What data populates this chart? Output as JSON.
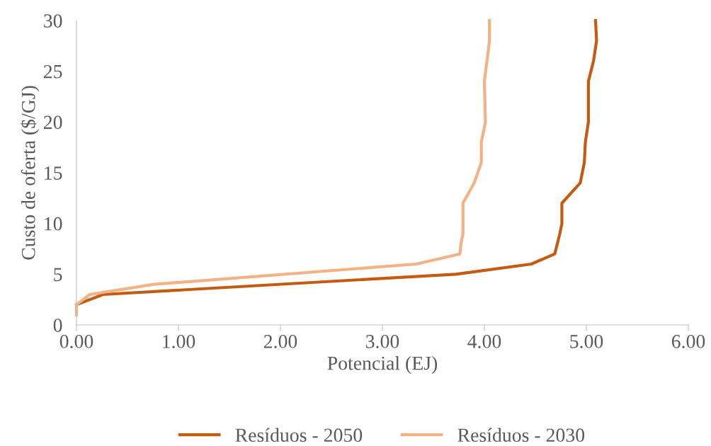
{
  "chart_data": {
    "type": "line",
    "xlabel": "Potencial (EJ)",
    "ylabel": "Custo de oferta ($/GJ)",
    "series": [
      {
        "name": "Resíduos - 2050",
        "color": "#c55a11",
        "x": [
          0,
          0.26,
          3.72,
          4.46,
          4.69,
          4.74,
          4.76,
          4.76,
          4.94,
          4.98,
          4.99,
          5.02,
          5.02,
          5.07,
          5.1,
          5.09
        ],
        "values": [
          2,
          3,
          5,
          6,
          7,
          9,
          10,
          12,
          14,
          16,
          18,
          20,
          24,
          26,
          28,
          30
        ]
      },
      {
        "name": "Resíduos - 2030",
        "color": "#f4b183",
        "x": [
          0,
          0,
          0.13,
          0.76,
          3.33,
          3.76,
          3.77,
          3.79,
          3.79,
          3.9,
          3.97,
          3.97,
          4.01,
          4.0,
          4.05,
          4.05
        ],
        "values": [
          1,
          2,
          3,
          4,
          6,
          7,
          8,
          9,
          12,
          14,
          16,
          18,
          20,
          24,
          28,
          30
        ]
      }
    ],
    "xlim": [
      0,
      6
    ],
    "xticks": [
      {
        "value": 0,
        "label": "0.00"
      },
      {
        "value": 1,
        "label": "1.00"
      },
      {
        "value": 2,
        "label": "2.00"
      },
      {
        "value": 3,
        "label": "3.00"
      },
      {
        "value": 4,
        "label": "4.00"
      },
      {
        "value": 5,
        "label": "5.00"
      },
      {
        "value": 6,
        "label": "6.00"
      }
    ],
    "ylim": [
      0,
      30
    ],
    "yticks": [
      0,
      5,
      10,
      15,
      20,
      25,
      30
    ],
    "grid": false,
    "legend": "bottom",
    "marker": "none",
    "line_style": "solid"
  }
}
